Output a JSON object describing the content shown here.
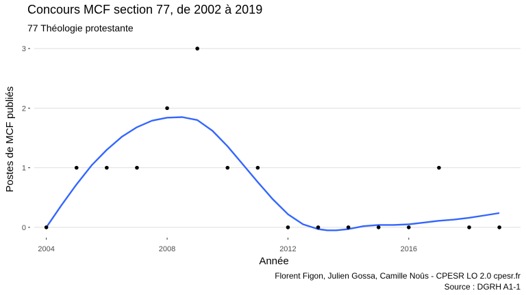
{
  "chart_data": {
    "type": "scatter",
    "title": "Concours MCF section 77, de 2002 à 2019",
    "subtitle": "77 Théologie protestante",
    "xlabel": "Année",
    "ylabel": "Postes de MCF publiés",
    "caption_line1": "Florent Figon, Julien Gossa, Camille Noûs - CPESR LO 2.0 cpesr.fr",
    "caption_line2": "Source : DGRH A1-1",
    "xlim": [
      2003.6,
      2019.7
    ],
    "ylim": [
      -0.15,
      3.15
    ],
    "x_ticks": [
      2004,
      2008,
      2012,
      2016
    ],
    "y_ticks": [
      0,
      1,
      2,
      3
    ],
    "grid": true,
    "point_color": "#000000",
    "smooth_color": "#3366FF",
    "points": {
      "x": [
        2004,
        2005,
        2006,
        2007,
        2008,
        2009,
        2010,
        2011,
        2012,
        2013,
        2014,
        2015,
        2016,
        2017,
        2018,
        2019
      ],
      "y": [
        0,
        1,
        1,
        1,
        2,
        3,
        1,
        1,
        0,
        0,
        0,
        0,
        0,
        1,
        0,
        0
      ]
    },
    "smooth": {
      "x": [
        2004,
        2004.5,
        2005,
        2005.5,
        2006,
        2006.5,
        2007,
        2007.5,
        2008,
        2008.5,
        2009,
        2009.5,
        2010,
        2010.5,
        2011,
        2011.5,
        2012,
        2012.5,
        2013,
        2013.3,
        2013.6,
        2014,
        2014.5,
        2015,
        2015.5,
        2016,
        2016.5,
        2017,
        2017.5,
        2018,
        2018.5,
        2019
      ],
      "y": [
        0,
        0.37,
        0.72,
        1.04,
        1.3,
        1.52,
        1.68,
        1.79,
        1.84,
        1.85,
        1.8,
        1.62,
        1.36,
        1.06,
        0.76,
        0.47,
        0.22,
        0.05,
        -0.03,
        -0.05,
        -0.05,
        -0.03,
        0.02,
        0.04,
        0.04,
        0.05,
        0.08,
        0.11,
        0.13,
        0.16,
        0.2,
        0.24
      ]
    }
  }
}
